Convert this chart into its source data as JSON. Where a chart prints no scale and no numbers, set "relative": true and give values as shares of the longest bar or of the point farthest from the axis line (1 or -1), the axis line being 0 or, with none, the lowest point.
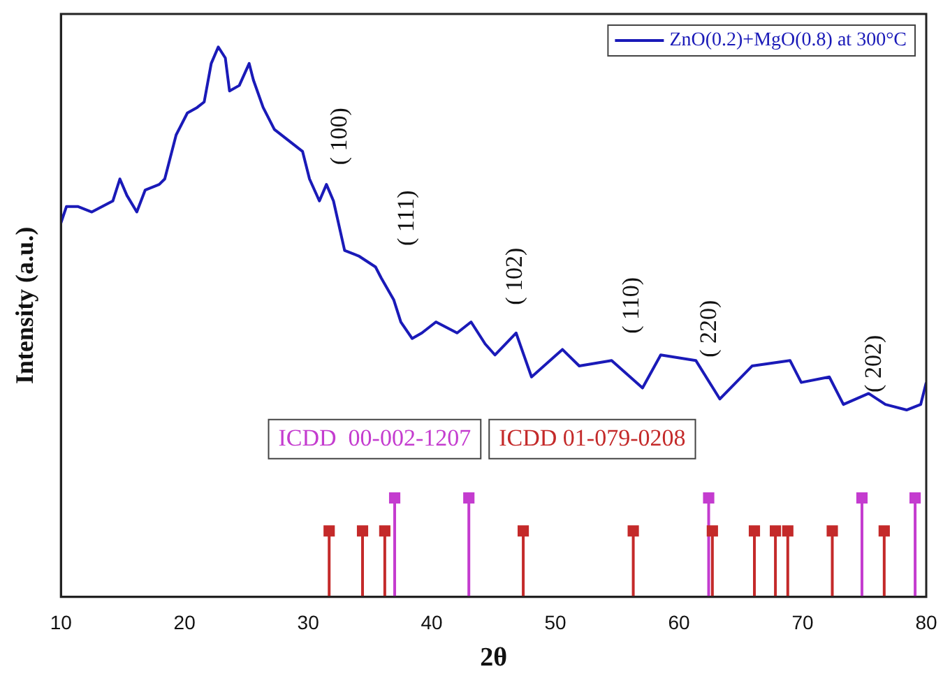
{
  "chart_data": {
    "type": "line",
    "relative": true,
    "xlabel": "2θ",
    "ylabel": "Intensity (a.u.)",
    "xlim": [
      10,
      80
    ],
    "xticks": [
      10,
      20,
      30,
      40,
      50,
      60,
      70,
      80
    ],
    "tick_labels": "x",
    "grid": false,
    "legend": "top right",
    "series": [
      {
        "name": "ZnO(0.2)+MgO(0.8) at 300°C",
        "color": "#1a1ab8",
        "x": [
          10,
          10.45,
          11.36,
          12.5,
          14.2,
          14.77,
          15.34,
          16.14,
          16.82,
          17.95,
          18.4,
          19.32,
          20.23,
          21.02,
          21.59,
          22.16,
          22.73,
          23.3,
          23.64,
          24.43,
          25.23,
          25.57,
          26.36,
          27.27,
          28.41,
          29.55,
          30.11,
          30.91,
          31.48,
          32.05,
          32.95,
          34.09,
          35.45,
          35.91,
          36.93,
          37.5,
          38.41,
          39.2,
          40.34,
          42.05,
          43.18,
          44.32,
          45.11,
          46.82,
          48.07,
          50.57,
          51.93,
          54.55,
          57.05,
          58.52,
          61.36,
          63.3,
          65.91,
          68.98,
          69.89,
          72.16,
          73.3,
          75.34,
          76.7,
          78.41,
          79.55,
          80
        ],
        "values": [
          0.68,
          0.71,
          0.71,
          0.7,
          0.72,
          0.76,
          0.73,
          0.7,
          0.74,
          0.75,
          0.76,
          0.84,
          0.88,
          0.89,
          0.9,
          0.97,
          1,
          0.98,
          0.92,
          0.93,
          0.97,
          0.94,
          0.89,
          0.85,
          0.83,
          0.81,
          0.76,
          0.72,
          0.75,
          0.72,
          0.63,
          0.62,
          0.6,
          0.58,
          0.54,
          0.5,
          0.47,
          0.48,
          0.5,
          0.48,
          0.5,
          0.46,
          0.44,
          0.48,
          0.4,
          0.45,
          0.42,
          0.43,
          0.38,
          0.44,
          0.43,
          0.36,
          0.42,
          0.43,
          0.39,
          0.4,
          0.35,
          0.37,
          0.35,
          0.34,
          0.35,
          0.39
        ]
      },
      {
        "name": "ICDD  00-002-1207",
        "type": "lollipop",
        "marker": "square",
        "color": "#c43ccf",
        "x": [
          37.0,
          43.0,
          62.4,
          74.8,
          79.1
        ],
        "values": [
          0.18,
          0.18,
          0.18,
          0.18,
          0.18
        ]
      },
      {
        "name": "ICDD 01-079-0208",
        "type": "lollipop",
        "marker": "square",
        "color": "#c42a2a",
        "x": [
          31.7,
          34.4,
          36.2,
          47.4,
          56.3,
          62.7,
          66.1,
          67.8,
          68.8,
          72.4,
          76.6
        ],
        "values": [
          0.12,
          0.12,
          0.12,
          0.12,
          0.12,
          0.12,
          0.12,
          0.12,
          0.12,
          0.12,
          0.12
        ]
      }
    ],
    "annotations": [
      "( 100)",
      "( 111)",
      "( 102)",
      "( 110)",
      "( 220)",
      "( 202)"
    ]
  }
}
